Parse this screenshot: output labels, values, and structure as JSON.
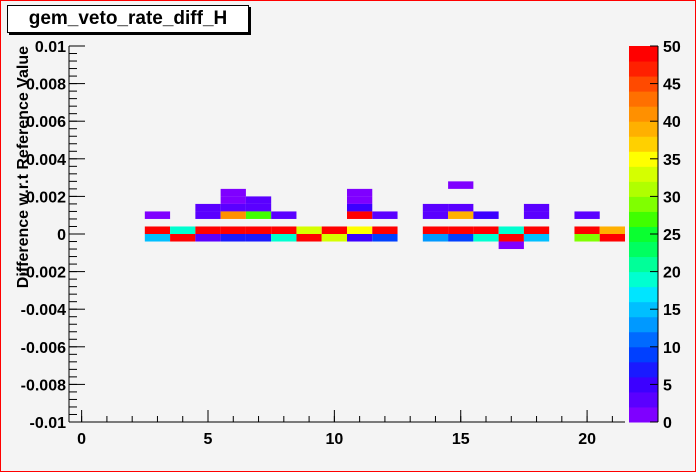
{
  "chart_data": {
    "type": "heatmap",
    "title": "gem_veto_rate_diff_H",
    "ylabel": "Difference w.r.t Reference Value",
    "xlabel": "",
    "xlim": [
      -0.5,
      21.5
    ],
    "ylim": [
      -0.01,
      0.01
    ],
    "bin_width_x": 1,
    "bin_height_y": 0.0004,
    "x_tick_labels": [
      "0",
      "5",
      "10",
      "15",
      "20"
    ],
    "x_tick_values": [
      0,
      5,
      10,
      15,
      20
    ],
    "y_tick_labels": [
      "0.01",
      "0.008",
      "0.006",
      "0.004",
      "0.002",
      "0",
      "-0.002",
      "-0.004",
      "-0.006",
      "-0.008",
      "-0.01"
    ],
    "y_tick_values": [
      0.01,
      0.008,
      0.006,
      0.004,
      0.002,
      0,
      -0.002,
      -0.004,
      -0.006,
      -0.008,
      -0.01
    ],
    "z_range": [
      0,
      50
    ],
    "z_tick_labels": [
      "0",
      "5",
      "10",
      "15",
      "20",
      "25",
      "30",
      "35",
      "40",
      "45",
      "50"
    ],
    "palette": [
      "#7f00ff",
      "#5a00ff",
      "#3c00ff",
      "#1a1aff",
      "#0040ff",
      "#006aff",
      "#0099ff",
      "#00bfff",
      "#00e5ff",
      "#00ffd0",
      "#00ff99",
      "#00ff60",
      "#0aff30",
      "#40ff00",
      "#80ff00",
      "#b0ff00",
      "#d5ff00",
      "#ffff00",
      "#ffd000",
      "#ffb000",
      "#ff9000",
      "#ff7000",
      "#ff4a00",
      "#ff2000",
      "#ff0000"
    ],
    "cells": [
      {
        "x": 3,
        "y": 0.0008,
        "z": 1
      },
      {
        "x": 3,
        "y": 0.0,
        "z": 49
      },
      {
        "x": 3,
        "y": -0.0004,
        "z": 14
      },
      {
        "x": 4,
        "y": 0.0,
        "z": 18
      },
      {
        "x": 4,
        "y": -0.0004,
        "z": 49
      },
      {
        "x": 5,
        "y": 0.0012,
        "z": 2
      },
      {
        "x": 5,
        "y": 0.0008,
        "z": 3
      },
      {
        "x": 5,
        "y": 0.0,
        "z": 49
      },
      {
        "x": 5,
        "y": -0.0004,
        "z": 3
      },
      {
        "x": 6,
        "y": 0.002,
        "z": 1
      },
      {
        "x": 6,
        "y": 0.0016,
        "z": 1
      },
      {
        "x": 6,
        "y": 0.0012,
        "z": 3
      },
      {
        "x": 6,
        "y": 0.0008,
        "z": 41
      },
      {
        "x": 6,
        "y": 0.0,
        "z": 49
      },
      {
        "x": 6,
        "y": -0.0004,
        "z": 6
      },
      {
        "x": 7,
        "y": 0.0016,
        "z": 2
      },
      {
        "x": 7,
        "y": 0.0012,
        "z": 2
      },
      {
        "x": 7,
        "y": 0.0008,
        "z": 27
      },
      {
        "x": 7,
        "y": 0.0,
        "z": 49
      },
      {
        "x": 7,
        "y": -0.0004,
        "z": 7
      },
      {
        "x": 8,
        "y": 0.0008,
        "z": 2
      },
      {
        "x": 8,
        "y": 0.0,
        "z": 49
      },
      {
        "x": 8,
        "y": -0.0004,
        "z": 18
      },
      {
        "x": 9,
        "y": 0.0,
        "z": 33
      },
      {
        "x": 9,
        "y": -0.0004,
        "z": 49
      },
      {
        "x": 10,
        "y": 0.0,
        "z": 49
      },
      {
        "x": 10,
        "y": -0.0004,
        "z": 33
      },
      {
        "x": 11,
        "y": 0.002,
        "z": 1
      },
      {
        "x": 11,
        "y": 0.0016,
        "z": 1
      },
      {
        "x": 11,
        "y": 0.0012,
        "z": 4
      },
      {
        "x": 11,
        "y": 0.0008,
        "z": 49
      },
      {
        "x": 11,
        "y": 0.0,
        "z": 35
      },
      {
        "x": 11,
        "y": -0.0004,
        "z": 4
      },
      {
        "x": 12,
        "y": 0.0008,
        "z": 2
      },
      {
        "x": 12,
        "y": 0.0,
        "z": 49
      },
      {
        "x": 12,
        "y": -0.0004,
        "z": 8
      },
      {
        "x": 14,
        "y": 0.0012,
        "z": 2
      },
      {
        "x": 14,
        "y": 0.0008,
        "z": 2
      },
      {
        "x": 14,
        "y": 0.0,
        "z": 49
      },
      {
        "x": 14,
        "y": -0.0004,
        "z": 13
      },
      {
        "x": 15,
        "y": 0.0024,
        "z": 1
      },
      {
        "x": 15,
        "y": 0.0012,
        "z": 2
      },
      {
        "x": 15,
        "y": 0.0008,
        "z": 38
      },
      {
        "x": 15,
        "y": 0.0,
        "z": 49
      },
      {
        "x": 15,
        "y": -0.0004,
        "z": 9
      },
      {
        "x": 16,
        "y": 0.0008,
        "z": 4
      },
      {
        "x": 16,
        "y": 0.0,
        "z": 49
      },
      {
        "x": 16,
        "y": -0.0004,
        "z": 19
      },
      {
        "x": 17,
        "y": 0.0,
        "z": 19
      },
      {
        "x": 17,
        "y": -0.0004,
        "z": 49
      },
      {
        "x": 17,
        "y": -0.0008,
        "z": 1
      },
      {
        "x": 18,
        "y": 0.0012,
        "z": 2
      },
      {
        "x": 18,
        "y": 0.0008,
        "z": 2
      },
      {
        "x": 18,
        "y": 0.0,
        "z": 49
      },
      {
        "x": 18,
        "y": -0.0004,
        "z": 15
      },
      {
        "x": 20,
        "y": 0.0008,
        "z": 2
      },
      {
        "x": 20,
        "y": 0.0,
        "z": 49
      },
      {
        "x": 20,
        "y": -0.0004,
        "z": 29
      },
      {
        "x": 21,
        "y": 0.0,
        "z": 38
      },
      {
        "x": 21,
        "y": -0.0004,
        "z": 49
      }
    ]
  }
}
